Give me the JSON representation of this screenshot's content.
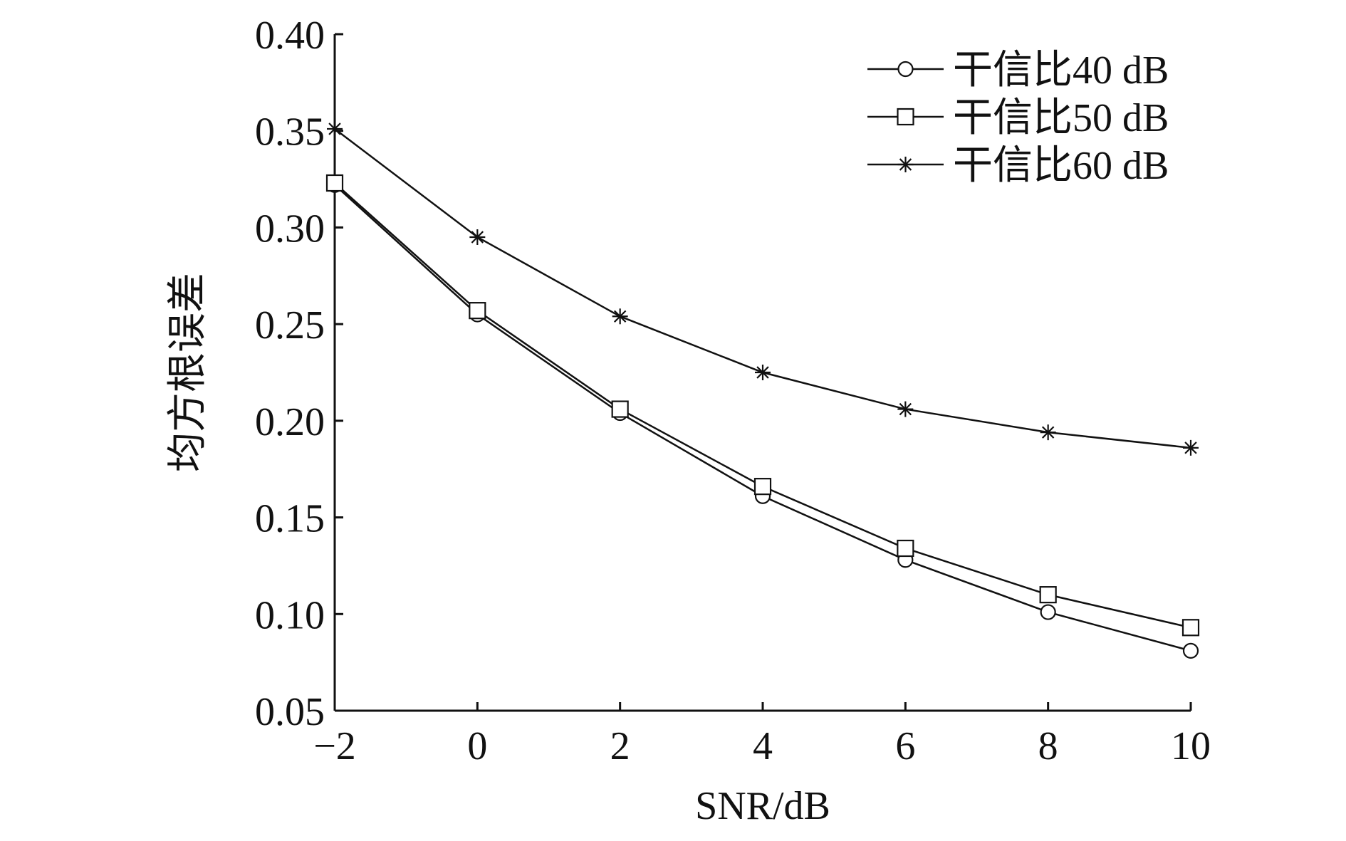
{
  "chart_data": {
    "type": "line",
    "xlabel": "SNR/dB",
    "ylabel": "均方根误差",
    "xlim": [
      -2,
      10
    ],
    "ylim": [
      0.05,
      0.4
    ],
    "xticks": [
      -2,
      0,
      2,
      4,
      6,
      8,
      10
    ],
    "xtick_labels": [
      "−2",
      "0",
      "2",
      "4",
      "6",
      "8",
      "10"
    ],
    "yticks": [
      0.05,
      0.1,
      0.15,
      0.2,
      0.25,
      0.3,
      0.35,
      0.4
    ],
    "ytick_labels": [
      "0.05",
      "0.10",
      "0.15",
      "0.20",
      "0.25",
      "0.30",
      "0.35",
      "0.40"
    ],
    "x": [
      -2,
      0,
      2,
      4,
      6,
      8,
      10
    ],
    "grid": false,
    "legend_position": "top-right",
    "series": [
      {
        "name": "干信比40 dB",
        "marker": "circle",
        "values": [
          0.322,
          0.255,
          0.204,
          0.161,
          0.128,
          0.101,
          0.081
        ]
      },
      {
        "name": "干信比50 dB",
        "marker": "square",
        "values": [
          0.323,
          0.257,
          0.206,
          0.166,
          0.134,
          0.11,
          0.093
        ]
      },
      {
        "name": "干信比60 dB",
        "marker": "star",
        "values": [
          0.351,
          0.295,
          0.254,
          0.225,
          0.206,
          0.194,
          0.186
        ]
      }
    ]
  }
}
